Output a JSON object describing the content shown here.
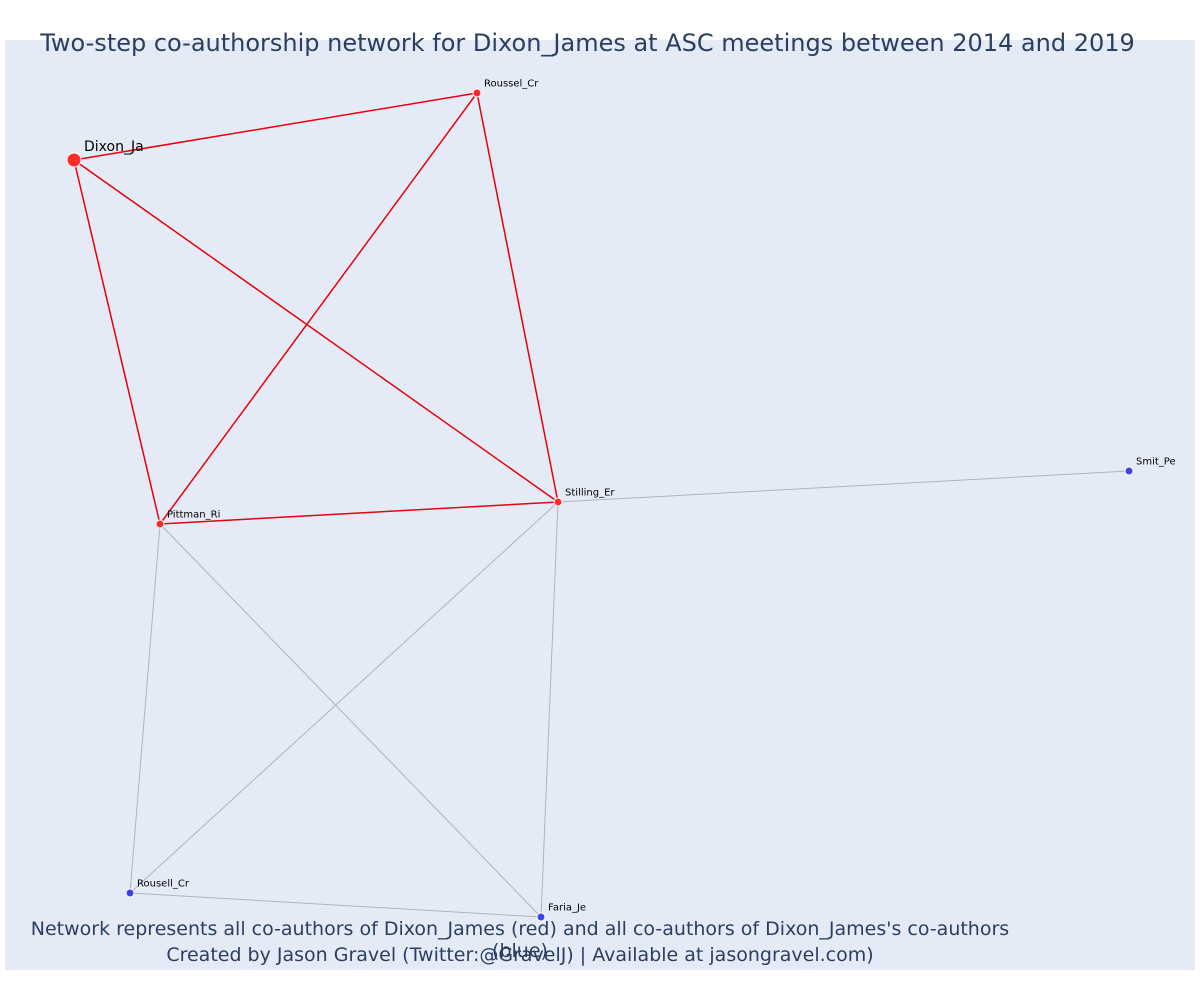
{
  "title": "Two-step co-authorship network for Dixon_James at ASC meetings between 2014 and 2019",
  "caption_line1": "Network represents all co-authors of Dixon_James (red) and all co-authors of Dixon_James's co-authors (blue)",
  "caption_line2": "Created by Jason Gravel (Twitter:@GravelJ) | Available at jasongravel.com)",
  "colors": {
    "background": "#e5ebf6",
    "first_step": "#ff2a2a",
    "second_step": "#3c42e8",
    "first_step_edge": "#e8000b",
    "second_step_edge": "#b0b2bd",
    "text": "#2a3f5f"
  },
  "nodes": [
    {
      "id": "Dixon_Ja",
      "label": "Dixon_Ja",
      "group": "focal"
    },
    {
      "id": "Roussel_Cr",
      "label": "Roussel_Cr",
      "group": "coauthor"
    },
    {
      "id": "Pittman_Ri",
      "label": "Pittman_Ri",
      "group": "coauthor"
    },
    {
      "id": "Stilling_Er",
      "label": "Stilling_Er",
      "group": "coauthor"
    },
    {
      "id": "Smit_Pe",
      "label": "Smit_Pe",
      "group": "second"
    },
    {
      "id": "Rousell_Cr",
      "label": "Rousell_Cr",
      "group": "second"
    },
    {
      "id": "Faria_Je",
      "label": "Faria_Je",
      "group": "second"
    }
  ],
  "edges": [
    {
      "source": "Dixon_Ja",
      "target": "Roussel_Cr",
      "type": "first"
    },
    {
      "source": "Dixon_Ja",
      "target": "Pittman_Ri",
      "type": "first"
    },
    {
      "source": "Dixon_Ja",
      "target": "Stilling_Er",
      "type": "first"
    },
    {
      "source": "Roussel_Cr",
      "target": "Pittman_Ri",
      "type": "first"
    },
    {
      "source": "Roussel_Cr",
      "target": "Stilling_Er",
      "type": "first"
    },
    {
      "source": "Pittman_Ri",
      "target": "Stilling_Er",
      "type": "first"
    },
    {
      "source": "Stilling_Er",
      "target": "Smit_Pe",
      "type": "second"
    },
    {
      "source": "Stilling_Er",
      "target": "Rousell_Cr",
      "type": "second"
    },
    {
      "source": "Stilling_Er",
      "target": "Faria_Je",
      "type": "second"
    },
    {
      "source": "Pittman_Ri",
      "target": "Rousell_Cr",
      "type": "second"
    },
    {
      "source": "Pittman_Ri",
      "target": "Faria_Je",
      "type": "second"
    },
    {
      "source": "Rousell_Cr",
      "target": "Faria_Je",
      "type": "second"
    }
  ]
}
